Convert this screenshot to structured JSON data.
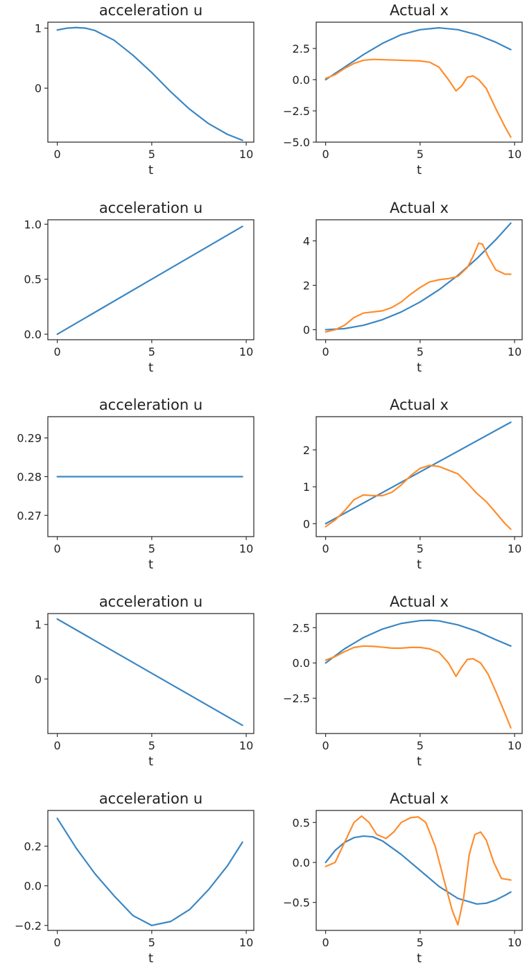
{
  "figure": {
    "colors": {
      "series1": "#3a86c3",
      "series2": "#ff8c2b",
      "frame": "#222222"
    }
  },
  "chart_data": [
    {
      "type": "line",
      "title": "acceleration u",
      "xlabel": "t",
      "ylabel": "",
      "xlim": [
        -0.5,
        10.4
      ],
      "ylim": [
        -0.9,
        1.1
      ],
      "xticks": [
        0,
        5,
        10
      ],
      "yticks": [
        0,
        1
      ],
      "series": [
        {
          "x": [
            0,
            0.5,
            1,
            1.5,
            2,
            3,
            4,
            5,
            6,
            7,
            8,
            9,
            9.8
          ],
          "y": [
            0.97,
            1.0,
            1.01,
            1.0,
            0.96,
            0.8,
            0.55,
            0.26,
            -0.06,
            -0.35,
            -0.59,
            -0.77,
            -0.87
          ]
        }
      ]
    },
    {
      "type": "line",
      "title": "Actual x",
      "xlabel": "t",
      "ylabel": "",
      "xlim": [
        -0.5,
        10.4
      ],
      "ylim": [
        -5.0,
        4.6
      ],
      "xticks": [
        0,
        5,
        10
      ],
      "yticks": [
        2.5,
        0.0,
        -2.5,
        -5.0
      ],
      "series": [
        {
          "x": [
            0,
            1,
            2,
            3,
            4,
            5,
            6,
            7,
            8,
            9,
            9.8
          ],
          "y": [
            0.0,
            1.0,
            2.0,
            2.9,
            3.6,
            4.0,
            4.15,
            4.0,
            3.6,
            3.0,
            2.4
          ]
        },
        {
          "x": [
            0,
            0.5,
            1,
            1.5,
            2,
            2.5,
            3,
            4,
            5,
            5.5,
            6,
            6.5,
            6.9,
            7.2,
            7.5,
            7.8,
            8.1,
            8.5,
            9,
            9.5,
            9.8
          ],
          "y": [
            0.1,
            0.4,
            0.9,
            1.3,
            1.55,
            1.62,
            1.6,
            1.55,
            1.5,
            1.4,
            1.0,
            0.0,
            -0.9,
            -0.5,
            0.2,
            0.3,
            0.0,
            -0.7,
            -2.3,
            -3.8,
            -4.6
          ]
        }
      ]
    },
    {
      "type": "line",
      "title": "acceleration u",
      "xlabel": "t",
      "ylabel": "",
      "xlim": [
        -0.5,
        10.4
      ],
      "ylim": [
        -0.05,
        1.04
      ],
      "xticks": [
        0,
        5,
        10
      ],
      "yticks": [
        0.0,
        0.5,
        1.0
      ],
      "series": [
        {
          "x": [
            0,
            9.8
          ],
          "y": [
            0.0,
            0.98
          ]
        }
      ]
    },
    {
      "type": "line",
      "title": "Actual x",
      "xlabel": "t",
      "ylabel": "",
      "xlim": [
        -0.5,
        10.4
      ],
      "ylim": [
        -0.45,
        4.95
      ],
      "xticks": [
        0,
        5,
        10
      ],
      "yticks": [
        0,
        2,
        4
      ],
      "series": [
        {
          "x": [
            0,
            1,
            2,
            3,
            4,
            5,
            6,
            7,
            8,
            9,
            9.8
          ],
          "y": [
            0.0,
            0.05,
            0.2,
            0.45,
            0.8,
            1.25,
            1.8,
            2.45,
            3.2,
            4.05,
            4.8
          ]
        },
        {
          "x": [
            0,
            0.5,
            1,
            1.5,
            2,
            2.5,
            3,
            3.5,
            4,
            4.5,
            5,
            5.5,
            6,
            6.5,
            7,
            7.5,
            7.8,
            8.1,
            8.3,
            8.6,
            9,
            9.5,
            9.8
          ],
          "y": [
            -0.1,
            0.0,
            0.2,
            0.55,
            0.75,
            0.8,
            0.85,
            1.0,
            1.25,
            1.6,
            1.9,
            2.15,
            2.25,
            2.3,
            2.4,
            2.8,
            3.3,
            3.9,
            3.85,
            3.3,
            2.7,
            2.5,
            2.5
          ]
        }
      ]
    },
    {
      "type": "line",
      "title": "acceleration u",
      "xlabel": "t",
      "ylabel": "",
      "xlim": [
        -0.5,
        10.4
      ],
      "ylim": [
        0.2645,
        0.2955
      ],
      "xticks": [
        0,
        5,
        10
      ],
      "yticks": [
        0.29,
        0.28,
        0.27
      ],
      "series": [
        {
          "x": [
            0,
            9.8
          ],
          "y": [
            0.28,
            0.28
          ]
        }
      ]
    },
    {
      "type": "line",
      "title": "Actual x",
      "xlabel": "t",
      "ylabel": "",
      "xlim": [
        -0.5,
        10.4
      ],
      "ylim": [
        -0.35,
        2.9
      ],
      "xticks": [
        0,
        5,
        10
      ],
      "yticks": [
        0,
        1,
        2
      ],
      "series": [
        {
          "x": [
            0,
            9.8
          ],
          "y": [
            0.0,
            2.75
          ]
        },
        {
          "x": [
            0,
            0.5,
            1,
            1.5,
            2,
            2.5,
            3,
            3.5,
            4,
            4.5,
            5,
            5.5,
            6,
            6.5,
            7,
            7.5,
            8,
            8.5,
            9,
            9.5,
            9.8
          ],
          "y": [
            -0.08,
            0.1,
            0.35,
            0.65,
            0.78,
            0.76,
            0.76,
            0.85,
            1.05,
            1.3,
            1.5,
            1.58,
            1.55,
            1.45,
            1.35,
            1.1,
            0.82,
            0.6,
            0.3,
            0.0,
            -0.15
          ]
        }
      ]
    },
    {
      "type": "line",
      "title": "acceleration u",
      "xlabel": "t",
      "ylabel": "",
      "xlim": [
        -0.5,
        10.4
      ],
      "ylim": [
        -1.0,
        1.2
      ],
      "xticks": [
        0,
        5,
        10
      ],
      "yticks": [
        1,
        0
      ],
      "series": [
        {
          "x": [
            0,
            9.8
          ],
          "y": [
            1.1,
            -0.85
          ]
        }
      ]
    },
    {
      "type": "line",
      "title": "Actual x",
      "xlabel": "t",
      "ylabel": "",
      "xlim": [
        -0.5,
        10.4
      ],
      "ylim": [
        -5.0,
        3.5
      ],
      "xticks": [
        0,
        5,
        10
      ],
      "yticks": [
        2.5,
        0.0,
        -2.5
      ],
      "series": [
        {
          "x": [
            0,
            1,
            2,
            3,
            4,
            5,
            5.5,
            6,
            7,
            8,
            9,
            9.8
          ],
          "y": [
            0.0,
            1.0,
            1.8,
            2.4,
            2.8,
            3.0,
            3.02,
            2.98,
            2.7,
            2.25,
            1.65,
            1.2
          ]
        },
        {
          "x": [
            0,
            0.5,
            1,
            1.5,
            2,
            2.5,
            3,
            3.5,
            4,
            4.5,
            5,
            5.5,
            6,
            6.5,
            6.9,
            7.2,
            7.5,
            7.8,
            8.2,
            8.6,
            9,
            9.5,
            9.8
          ],
          "y": [
            0.2,
            0.45,
            0.8,
            1.1,
            1.2,
            1.18,
            1.12,
            1.05,
            1.05,
            1.1,
            1.1,
            1.0,
            0.75,
            0.0,
            -0.95,
            -0.3,
            0.25,
            0.3,
            0.0,
            -0.8,
            -2.0,
            -3.6,
            -4.6
          ]
        }
      ]
    },
    {
      "type": "line",
      "title": "acceleration u",
      "xlabel": "t",
      "ylabel": "",
      "xlim": [
        -0.5,
        10.4
      ],
      "ylim": [
        -0.225,
        0.38
      ],
      "xticks": [
        0,
        5,
        10
      ],
      "yticks": [
        0.2,
        0.0,
        -0.2
      ],
      "series": [
        {
          "x": [
            0,
            1,
            2,
            3,
            4,
            5,
            6,
            7,
            8,
            9,
            9.8
          ],
          "y": [
            0.34,
            0.19,
            0.06,
            -0.05,
            -0.15,
            -0.2,
            -0.18,
            -0.12,
            -0.02,
            0.1,
            0.22
          ]
        }
      ]
    },
    {
      "type": "line",
      "title": "Actual x",
      "xlabel": "t",
      "ylabel": "",
      "xlim": [
        -0.5,
        10.4
      ],
      "ylim": [
        -0.85,
        0.65
      ],
      "xticks": [
        0,
        5,
        10
      ],
      "yticks": [
        0.5,
        0.0,
        -0.5
      ],
      "series": [
        {
          "x": [
            0,
            0.5,
            1,
            1.5,
            2,
            2.5,
            3,
            4,
            5,
            6,
            7,
            8,
            8.5,
            9,
            9.5,
            9.8
          ],
          "y": [
            0.0,
            0.15,
            0.25,
            0.31,
            0.33,
            0.32,
            0.27,
            0.1,
            -0.1,
            -0.3,
            -0.45,
            -0.52,
            -0.51,
            -0.47,
            -0.41,
            -0.37
          ]
        },
        {
          "x": [
            0,
            0.5,
            1,
            1.5,
            1.9,
            2.3,
            2.7,
            3.2,
            3.6,
            4,
            4.5,
            4.9,
            5.3,
            5.8,
            6.3,
            6.7,
            7.0,
            7.3,
            7.6,
            7.9,
            8.2,
            8.5,
            8.9,
            9.3,
            9.8
          ],
          "y": [
            -0.05,
            0.0,
            0.25,
            0.5,
            0.58,
            0.5,
            0.35,
            0.3,
            0.38,
            0.5,
            0.56,
            0.57,
            0.5,
            0.2,
            -0.25,
            -0.6,
            -0.78,
            -0.45,
            0.1,
            0.35,
            0.38,
            0.28,
            0.0,
            -0.2,
            -0.22
          ]
        }
      ]
    }
  ]
}
